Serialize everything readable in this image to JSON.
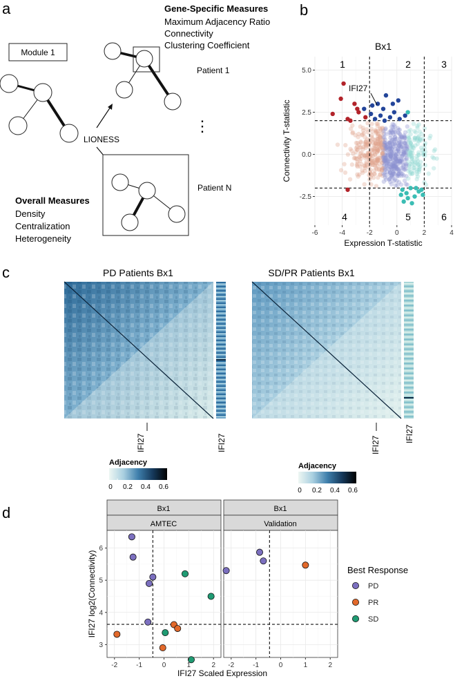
{
  "panel_labels": {
    "a": "a",
    "b": "b",
    "c": "c",
    "d": "d"
  },
  "panel_a": {
    "module_label": "Module 1",
    "gene_specific_title": "Gene-Specific Measures",
    "gene_specific_items": [
      "Maximum Adjacency Ratio",
      "Connectivity",
      "Clustering Coefficient"
    ],
    "patient1": "Patient 1",
    "patientN": "Patient N",
    "lioness": "LIONESS",
    "ellipsis": "⋮",
    "overall_title": "Overall Measures",
    "overall_items": [
      "Density",
      "Centralization",
      "Heterogeneity"
    ]
  },
  "chart_data": [
    {
      "type": "scatter",
      "panel": "b",
      "title": "Bx1",
      "xlabel": "Expression T-statistic",
      "ylabel": "Connectivity T-statistic",
      "xlim": [
        -6,
        4
      ],
      "ylim": [
        -4.2,
        5.8
      ],
      "x_ticks": [
        "-6",
        "-4",
        "-2",
        "0",
        "2",
        "4"
      ],
      "y_ticks": [
        "-2.5",
        "0.0",
        "2.5",
        "5.0"
      ],
      "thresholds": {
        "x": [
          -2,
          2
        ],
        "y": [
          -2,
          2
        ]
      },
      "region_labels": [
        "1",
        "2",
        "3",
        "4",
        "5",
        "6"
      ],
      "annotation": "IFI27",
      "highlight_points": [
        {
          "x": -3.9,
          "y": 4.2,
          "group": "red"
        },
        {
          "x": -4.1,
          "y": 3.3,
          "group": "red"
        },
        {
          "x": -3.1,
          "y": 3.0,
          "group": "red"
        },
        {
          "x": -2.9,
          "y": 2.7,
          "group": "red"
        },
        {
          "x": -4.7,
          "y": 2.4,
          "group": "red"
        },
        {
          "x": -3.6,
          "y": 2.1,
          "group": "red"
        },
        {
          "x": -2.3,
          "y": 2.2,
          "group": "red"
        },
        {
          "x": -2.8,
          "y": 2.5,
          "group": "red"
        },
        {
          "x": -3.4,
          "y": 2.0,
          "group": "red"
        },
        {
          "x": -3.6,
          "y": -2.1,
          "group": "red"
        },
        {
          "x": -1.9,
          "y": 2.4,
          "group": "blue"
        },
        {
          "x": -1.6,
          "y": 2.1,
          "group": "blue"
        },
        {
          "x": -1.2,
          "y": 2.3,
          "group": "blue"
        },
        {
          "x": -0.9,
          "y": 2.0,
          "group": "blue"
        },
        {
          "x": -0.5,
          "y": 2.2,
          "group": "blue"
        },
        {
          "x": -0.2,
          "y": 2.5,
          "group": "blue"
        },
        {
          "x": 0.2,
          "y": 2.1,
          "group": "blue"
        },
        {
          "x": 0.6,
          "y": 2.3,
          "group": "blue"
        },
        {
          "x": -1.4,
          "y": 3.0,
          "group": "blue"
        },
        {
          "x": -0.8,
          "y": 3.5,
          "group": "blue"
        },
        {
          "x": -0.3,
          "y": 3.0,
          "group": "blue"
        },
        {
          "x": 0.1,
          "y": 3.2,
          "group": "blue"
        },
        {
          "x": -1.0,
          "y": 2.7,
          "group": "blue"
        },
        {
          "x": -2.4,
          "y": 2.7,
          "group": "blue"
        },
        {
          "x": -1.8,
          "y": 2.9,
          "group": "blue"
        },
        {
          "x": 0.4,
          "y": -2.1,
          "group": "teal"
        },
        {
          "x": 0.7,
          "y": -2.3,
          "group": "teal"
        },
        {
          "x": 1.0,
          "y": -2.0,
          "group": "teal"
        },
        {
          "x": 1.3,
          "y": -2.5,
          "group": "teal"
        },
        {
          "x": 1.6,
          "y": -2.2,
          "group": "teal"
        },
        {
          "x": 1.9,
          "y": -2.4,
          "group": "teal"
        },
        {
          "x": 0.5,
          "y": -2.8,
          "group": "teal"
        },
        {
          "x": 1.1,
          "y": -2.9,
          "group": "teal"
        },
        {
          "x": 0.8,
          "y": -2.6,
          "group": "teal"
        },
        {
          "x": 1.4,
          "y": -2.0,
          "group": "teal"
        },
        {
          "x": 1.8,
          "y": -2.1,
          "group": "teal"
        },
        {
          "x": 0.3,
          "y": -2.4,
          "group": "teal"
        },
        {
          "x": 0.8,
          "y": 2.5,
          "group": "teal"
        }
      ]
    },
    {
      "type": "scatter",
      "panel": "d",
      "facets": [
        {
          "strip_top": "Bx1",
          "strip_bottom": "AMTEC"
        },
        {
          "strip_top": "Bx1",
          "strip_bottom": "Validation"
        }
      ],
      "xlabel": "IFI27 Scaled Expression",
      "ylabel": "IFI27 log2(Connectivity)",
      "xlim": [
        -2.3,
        2.3
      ],
      "ylim": [
        2.6,
        6.55
      ],
      "x_ticks": [
        "-2",
        "-1",
        "0",
        "1",
        "2"
      ],
      "y_ticks": [
        "3",
        "4",
        "5",
        "6"
      ],
      "thresholds": {
        "x": -0.45,
        "y": 3.63
      },
      "legend_title": "Best Response",
      "legend": [
        {
          "name": "PD",
          "color": "#7b6fbf"
        },
        {
          "name": "PR",
          "color": "#e2692b"
        },
        {
          "name": "SD",
          "color": "#1f9b73"
        }
      ],
      "series": [
        {
          "facet": 0,
          "name": "PD",
          "points": [
            [
              -1.3,
              6.35
            ],
            [
              -1.25,
              5.72
            ],
            [
              -0.45,
              5.1
            ],
            [
              -0.6,
              4.9
            ],
            [
              -0.65,
              3.7
            ]
          ]
        },
        {
          "facet": 0,
          "name": "PR",
          "points": [
            [
              -1.9,
              3.32
            ],
            [
              0.4,
              3.62
            ],
            [
              0.55,
              3.5
            ],
            [
              -0.05,
              2.9
            ]
          ]
        },
        {
          "facet": 0,
          "name": "SD",
          "points": [
            [
              0.85,
              5.2
            ],
            [
              1.9,
              4.5
            ],
            [
              0.05,
              3.37
            ],
            [
              1.1,
              2.53
            ]
          ]
        },
        {
          "facet": 1,
          "name": "PD",
          "points": [
            [
              -2.2,
              5.3
            ],
            [
              -0.85,
              5.87
            ],
            [
              -0.7,
              5.6
            ]
          ]
        },
        {
          "facet": 1,
          "name": "PR",
          "points": [
            [
              1.0,
              5.47
            ]
          ]
        }
      ]
    }
  ],
  "panel_c": {
    "left_title": "PD Patients Bx1",
    "right_title": "SD/PR Patients Bx1",
    "gene_label": "IFI27",
    "side_label": "IFI27",
    "legend_title": "Adjacency",
    "legend_ticks": [
      "0",
      "0.2",
      "0.4",
      "0.6"
    ]
  },
  "colors": {
    "red": "#b2232a",
    "blue": "#23459a",
    "teal": "#3bbdb4",
    "grid": "#e6e6e6"
  }
}
